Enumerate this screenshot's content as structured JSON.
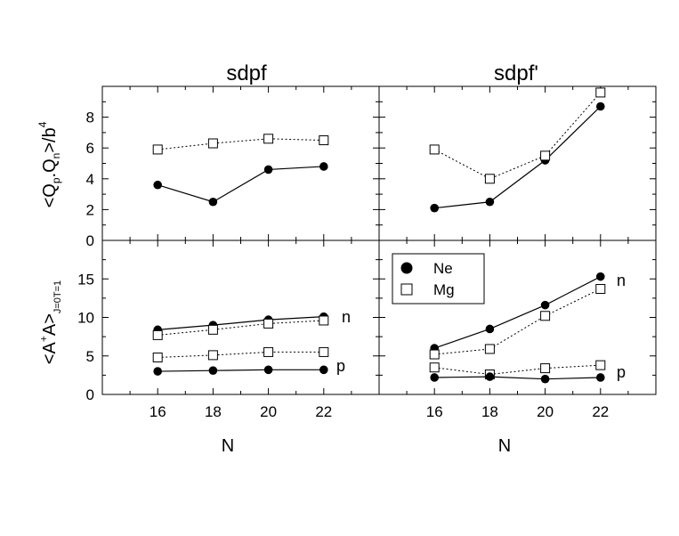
{
  "chart_data": {
    "type": "line",
    "column_titles": [
      "sdpf",
      "sdpf'"
    ],
    "xlabel": "N",
    "x": [
      16,
      18,
      20,
      22
    ],
    "xlim": [
      14,
      24
    ],
    "ylabels": {
      "top": {
        "base": "<Q",
        "sub1": "p",
        "mid": ".Q",
        "sub2": "n",
        "end": ">/b",
        "sup": "4"
      },
      "bottom": {
        "base": "<A",
        "sup": "+",
        "mid": "A>",
        "sub": "J=0T=1"
      }
    },
    "legend": {
      "location": "upper-left of bottom-right panel",
      "entries": [
        {
          "label": "Ne",
          "marker": "filled-circle",
          "line": "solid"
        },
        {
          "label": "Mg",
          "marker": "open-square",
          "line": "dotted"
        }
      ]
    },
    "panels": [
      {
        "id": "top-left",
        "ylim": [
          0,
          10
        ],
        "yticks": [
          0,
          2,
          4,
          6,
          8
        ],
        "series": [
          {
            "name": "Ne",
            "values": [
              3.6,
              2.5,
              4.6,
              4.8
            ]
          },
          {
            "name": "Mg",
            "values": [
              5.9,
              6.3,
              6.6,
              6.5
            ]
          }
        ]
      },
      {
        "id": "top-right",
        "ylim": [
          0,
          10
        ],
        "yticks": [
          0,
          2,
          4,
          6,
          8
        ],
        "series": [
          {
            "name": "Ne",
            "values": [
              2.1,
              2.5,
              5.2,
              8.7
            ]
          },
          {
            "name": "Mg",
            "values": [
              5.9,
              4.0,
              5.5,
              9.6
            ]
          }
        ]
      },
      {
        "id": "bottom-left",
        "ylim": [
          0,
          20
        ],
        "yticks": [
          0,
          5,
          10,
          15
        ],
        "series": [
          {
            "name": "Ne n",
            "values": [
              8.4,
              9.0,
              9.7,
              10.1
            ]
          },
          {
            "name": "Mg n",
            "values": [
              7.7,
              8.4,
              9.2,
              9.6
            ]
          },
          {
            "name": "Mg p",
            "values": [
              4.8,
              5.1,
              5.5,
              5.5
            ]
          },
          {
            "name": "Ne p",
            "values": [
              3.0,
              3.1,
              3.2,
              3.2
            ]
          }
        ],
        "annotations": [
          "n",
          "p"
        ]
      },
      {
        "id": "bottom-right",
        "ylim": [
          0,
          20
        ],
        "yticks": [
          0,
          5,
          10,
          15
        ],
        "series": [
          {
            "name": "Ne n",
            "values": [
              6.0,
              8.5,
              11.6,
              15.3
            ]
          },
          {
            "name": "Mg n",
            "values": [
              5.2,
              5.9,
              10.2,
              13.7
            ]
          },
          {
            "name": "Mg p",
            "values": [
              3.5,
              2.6,
              3.4,
              3.8
            ]
          },
          {
            "name": "Ne p",
            "values": [
              2.2,
              2.3,
              2.0,
              2.2
            ]
          }
        ],
        "annotations": [
          "n",
          "p"
        ]
      }
    ]
  }
}
